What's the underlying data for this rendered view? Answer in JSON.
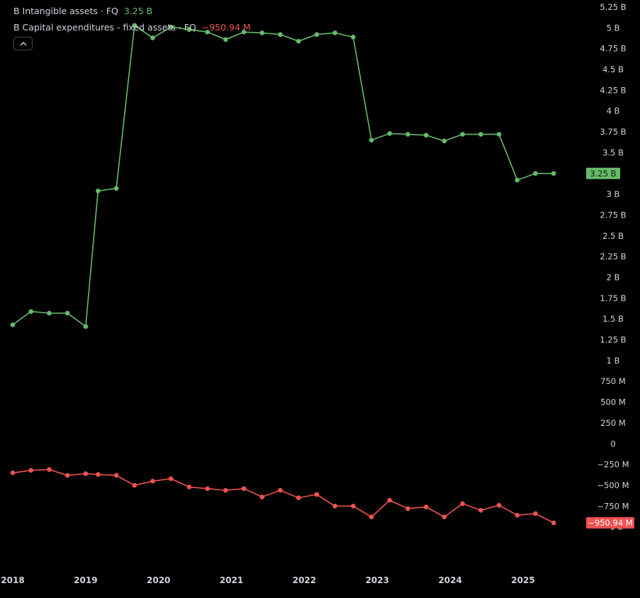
{
  "legend": {
    "series1_label": "B Intangible assets · FQ",
    "series1_value": "3.25 B",
    "series2_label": "B Capital expenditures - fixed assets · FQ",
    "series2_value": "−950.94 M"
  },
  "colors": {
    "green": "#66bb6a",
    "red": "#ef5350",
    "background": "#000000",
    "text": "#d1d4dc"
  },
  "icons": {
    "collapse": "chevron-up-icon"
  },
  "chart_data": {
    "type": "line",
    "ylim": [
      -1250000000,
      5250000000
    ],
    "yticks": [
      {
        "v": 5250000000,
        "label": "5.25 B"
      },
      {
        "v": 5000000000,
        "label": "5 B"
      },
      {
        "v": 4750000000,
        "label": "4.75 B"
      },
      {
        "v": 4500000000,
        "label": "4.5 B"
      },
      {
        "v": 4250000000,
        "label": "4.25 B"
      },
      {
        "v": 4000000000,
        "label": "4 B"
      },
      {
        "v": 3750000000,
        "label": "3.75 B"
      },
      {
        "v": 3500000000,
        "label": "3.5 B"
      },
      {
        "v": 3000000000,
        "label": "3 B"
      },
      {
        "v": 2750000000,
        "label": "2.75 B"
      },
      {
        "v": 2500000000,
        "label": "2.5 B"
      },
      {
        "v": 2250000000,
        "label": "2.25 B"
      },
      {
        "v": 2000000000,
        "label": "2 B"
      },
      {
        "v": 1750000000,
        "label": "1.75 B"
      },
      {
        "v": 1500000000,
        "label": "1.5 B"
      },
      {
        "v": 1250000000,
        "label": "1.25 B"
      },
      {
        "v": 1000000000,
        "label": "1 B"
      },
      {
        "v": 750000000,
        "label": "750 M"
      },
      {
        "v": 500000000,
        "label": "500 M"
      },
      {
        "v": 250000000,
        "label": "250 M"
      },
      {
        "v": 0,
        "label": "0"
      },
      {
        "v": -250000000,
        "label": "−250 M"
      },
      {
        "v": -500000000,
        "label": "−500 M"
      },
      {
        "v": -750000000,
        "label": "−750 M"
      },
      {
        "v": -1000000000,
        "label": "−1 B"
      }
    ],
    "xticks": [
      "2018",
      "2019",
      "2020",
      "2021",
      "2022",
      "2023",
      "2024",
      "2025"
    ],
    "x": [
      2018.0,
      2018.25,
      2018.5,
      2018.75,
      2019.0,
      2019.17,
      2019.42,
      2019.67,
      2019.92,
      2020.17,
      2020.42,
      2020.67,
      2020.92,
      2021.17,
      2021.42,
      2021.67,
      2021.92,
      2022.17,
      2022.42,
      2022.67,
      2022.92,
      2023.17,
      2023.42,
      2023.67,
      2023.92,
      2024.17,
      2024.42,
      2024.67,
      2024.92,
      2025.17,
      2025.42
    ],
    "series": [
      {
        "name": "Intangible assets",
        "color": "#66bb6a",
        "values": [
          1430000000,
          1590000000,
          1570000000,
          1570000000,
          1410000000,
          3040000000,
          3070000000,
          5030000000,
          4880000000,
          5010000000,
          4980000000,
          4950000000,
          4860000000,
          4950000000,
          4940000000,
          4920000000,
          4840000000,
          4920000000,
          4940000000,
          4890000000,
          3650000000,
          3730000000,
          3720000000,
          3710000000,
          3640000000,
          3720000000,
          3720000000,
          3720000000,
          3170000000,
          3250000000,
          3250000000
        ],
        "last_label": "3.25 B"
      },
      {
        "name": "Capital expenditures - fixed assets",
        "color": "#ef5350",
        "values": [
          -350000000,
          -320000000,
          -310000000,
          -380000000,
          -360000000,
          -370000000,
          -380000000,
          -500000000,
          -450000000,
          -420000000,
          -520000000,
          -540000000,
          -560000000,
          -540000000,
          -640000000,
          -560000000,
          -650000000,
          -610000000,
          -750000000,
          -750000000,
          -880000000,
          -680000000,
          -780000000,
          -760000000,
          -880000000,
          -720000000,
          -800000000,
          -740000000,
          -860000000,
          -840000000,
          -950940000
        ],
        "last_label": "−950.94 M"
      }
    ]
  }
}
